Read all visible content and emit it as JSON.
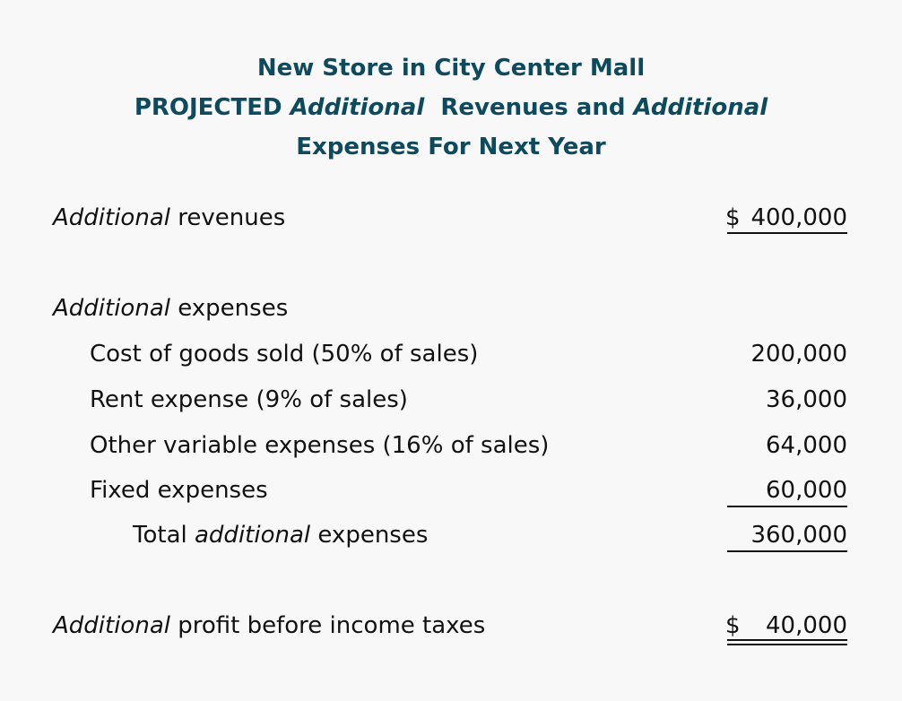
{
  "header": {
    "line1": "New Store in City Center Mall",
    "line2_prefix": "PROJECTED ",
    "line2_italic1": "Additional",
    "line2_middle": "  Revenues and ",
    "line2_italic2": "Additional",
    "line3": "Expenses For Next Year"
  },
  "revenues": {
    "label_italic": "Additional",
    "label_rest": " revenues",
    "currency": "$",
    "amount": "400,000"
  },
  "expenses_heading": {
    "label_italic": "Additional",
    "label_rest": " expenses"
  },
  "expense_items": [
    {
      "label": "Cost of goods sold (50% of sales)",
      "amount": "200,000"
    },
    {
      "label": "Rent expense (9% of sales)",
      "amount": "36,000"
    },
    {
      "label": "Other variable expenses (16% of sales)",
      "amount": "64,000"
    },
    {
      "label": "Fixed expenses",
      "amount": "60,000"
    }
  ],
  "total": {
    "label_prefix": "Total ",
    "label_italic": "additional",
    "label_rest": " expenses",
    "amount": "360,000"
  },
  "profit": {
    "label_italic": "Additional",
    "label_rest": " profit before income taxes",
    "currency": "$",
    "amount": "40,000"
  },
  "colors": {
    "title": "#0e4a5e",
    "text": "#111111",
    "background": "#f8f8f8"
  }
}
